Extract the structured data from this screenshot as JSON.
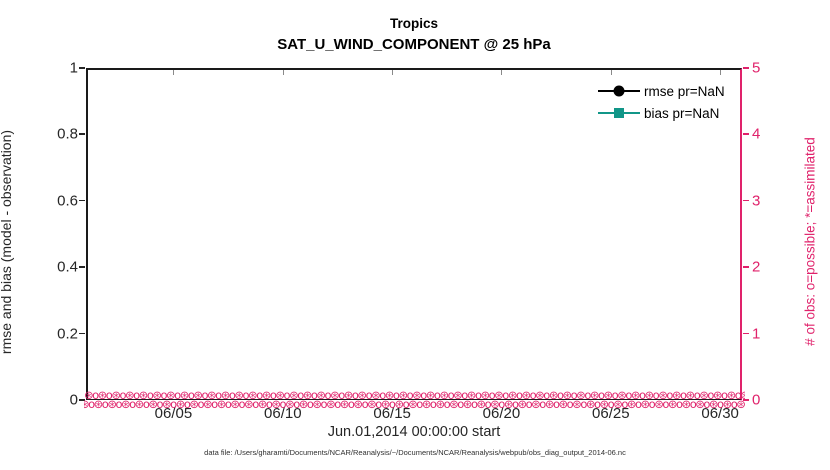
{
  "title": {
    "line1": "Tropics",
    "line2": "SAT_U_WIND_COMPONENT @ 25 hPa"
  },
  "left_axis": {
    "label": "rmse and bias (model - observation)",
    "ticks": [
      "0",
      "0.2",
      "0.4",
      "0.6",
      "0.8",
      "1"
    ],
    "color": "#262626"
  },
  "right_axis": {
    "label": "# of obs: o=possible; *=assimilated",
    "ticks": [
      "0",
      "1",
      "2",
      "3",
      "4",
      "5"
    ],
    "color": "#e0226b"
  },
  "x_axis": {
    "label": "Jun.01,2014 00:00:00 start",
    "ticks": [
      {
        "label": "06/05",
        "day": 5
      },
      {
        "label": "06/10",
        "day": 10
      },
      {
        "label": "06/15",
        "day": 15
      },
      {
        "label": "06/20",
        "day": 20
      },
      {
        "label": "06/25",
        "day": 25
      },
      {
        "label": "06/30",
        "day": 30
      }
    ],
    "span_days": 30
  },
  "legend": [
    {
      "label": "rmse pr=NaN",
      "color": "#000000",
      "marker": "circle"
    },
    {
      "label": "bias pr=NaN",
      "color": "#119688",
      "marker": "square"
    }
  ],
  "obs_band": {
    "pattern": "⊛o",
    "repeat_per_row": 90,
    "rows": 2,
    "color": "#e0226b"
  },
  "footer": "data file: /Users/gharamti/Documents/NCAR/Reanalysis/~/Documents/NCAR/Reanalysis/webpub/obs_diag_output_2014-06.nc",
  "chart_data": {
    "type": "line",
    "title": "Tropics",
    "subtitle": "SAT_U_WIND_COMPONENT @ 25 hPa",
    "xlabel": "Jun.01,2014 00:00:00 start",
    "ylabel_left": "rmse and bias (model - observation)",
    "ylabel_right": "# of obs: o=possible; *=assimilated",
    "ylim_left": [
      0,
      1
    ],
    "ylim_right": [
      0,
      5
    ],
    "x_range": [
      "2014-06-01 00:00:00",
      "2014-07-01 00:00:00"
    ],
    "x_tick_labels": [
      "06/05",
      "06/10",
      "06/15",
      "06/20",
      "06/25",
      "06/30"
    ],
    "grid": true,
    "legend_position": "top-right-inside",
    "series": [
      {
        "name": "rmse pr=NaN",
        "axis": "left",
        "color": "#000000",
        "marker": "circle",
        "values": null,
        "note": "all NaN - no line drawn"
      },
      {
        "name": "bias pr=NaN",
        "axis": "right-color-teal",
        "color": "#119688",
        "marker": "square",
        "values": null,
        "note": "all NaN - no line drawn"
      },
      {
        "name": "possible obs (o)",
        "axis": "right",
        "color": "#e0226b",
        "marker": "o",
        "value_constant": 0,
        "n_points": 120
      },
      {
        "name": "assimilated obs (*)",
        "axis": "right",
        "color": "#e0226b",
        "marker": "*",
        "value_constant": 0,
        "n_points": 120
      }
    ]
  }
}
